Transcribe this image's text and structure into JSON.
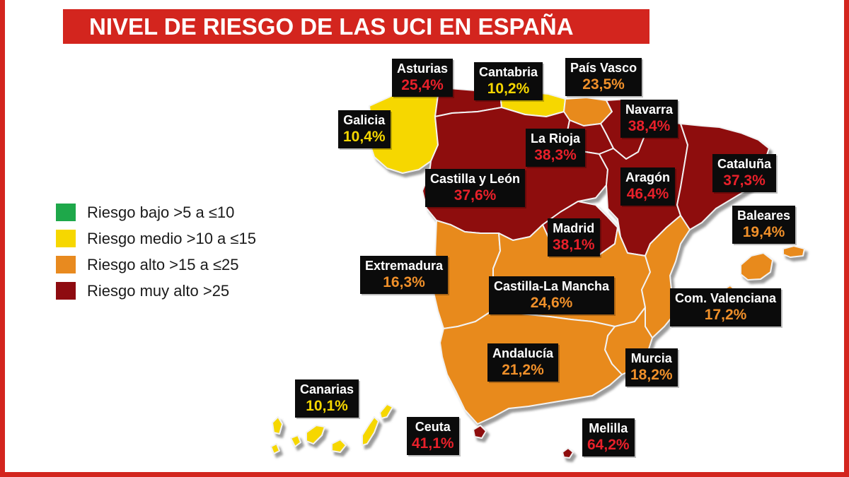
{
  "title": "NIVEL DE RIESGO DE LAS UCI EN ESPAÑA",
  "colors": {
    "bajo": "#1ea84a",
    "medio": "#f6d700",
    "alto": "#e88a1f",
    "muy_alto": "#8e0b10",
    "label_bg": "#0b0b0b",
    "pct_medio": "#f6d700",
    "pct_alto": "#f0902a",
    "pct_muy_alto": "#e8202a"
  },
  "legend": [
    {
      "label": "Riesgo bajo >5 a ≤10",
      "color": "#1ea84a"
    },
    {
      "label": "Riesgo medio >10 a ≤15",
      "color": "#f6d700"
    },
    {
      "label": "Riesgo alto >15 a ≤25",
      "color": "#e88a1f"
    },
    {
      "label": "Riesgo muy alto >25",
      "color": "#8e0b10"
    }
  ],
  "regions": [
    {
      "name": "Asturias",
      "value": "25,4%",
      "level": "muy_alto"
    },
    {
      "name": "Cantabria",
      "value": "10,2%",
      "level": "medio"
    },
    {
      "name": "País Vasco",
      "value": "23,5%",
      "level": "alto"
    },
    {
      "name": "Galicia",
      "value": "10,4%",
      "level": "medio"
    },
    {
      "name": "Navarra",
      "value": "38,4%",
      "level": "muy_alto"
    },
    {
      "name": "La Rioja",
      "value": "38,3%",
      "level": "muy_alto"
    },
    {
      "name": "Castilla y León",
      "value": "37,6%",
      "level": "muy_alto"
    },
    {
      "name": "Aragón",
      "value": "46,4%",
      "level": "muy_alto"
    },
    {
      "name": "Cataluña",
      "value": "37,3%",
      "level": "muy_alto"
    },
    {
      "name": "Baleares",
      "value": "19,4%",
      "level": "alto"
    },
    {
      "name": "Madrid",
      "value": "38,1%",
      "level": "muy_alto"
    },
    {
      "name": "Extremadura",
      "value": "16,3%",
      "level": "alto"
    },
    {
      "name": "Castilla-La Mancha",
      "value": "24,6%",
      "level": "alto"
    },
    {
      "name": "Com. Valenciana",
      "value": "17,2%",
      "level": "alto"
    },
    {
      "name": "Andalucía",
      "value": "21,2%",
      "level": "alto"
    },
    {
      "name": "Murcia",
      "value": "18,2%",
      "level": "alto"
    },
    {
      "name": "Canarias",
      "value": "10,1%",
      "level": "medio"
    },
    {
      "name": "Ceuta",
      "value": "41,1%",
      "level": "muy_alto"
    },
    {
      "name": "Melilla",
      "value": "64,2%",
      "level": "muy_alto"
    }
  ]
}
